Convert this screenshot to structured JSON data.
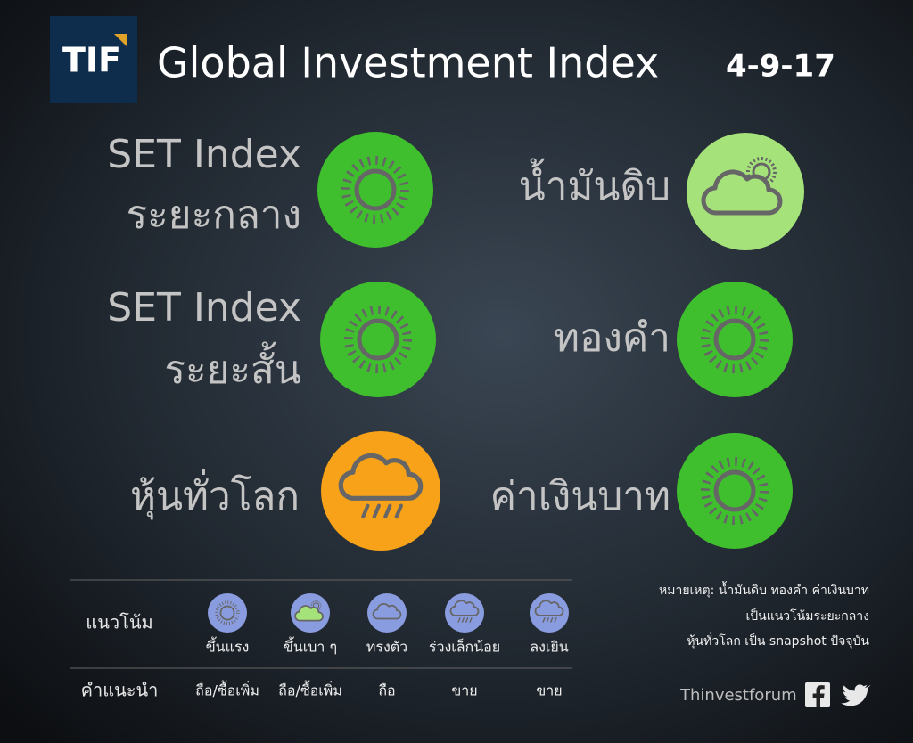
{
  "logo": "TIF",
  "header": {
    "title": "Global Investment Index",
    "date": "4-9-17"
  },
  "items": [
    {
      "label": [
        "SET Index",
        "ระยะกลาง"
      ]
    },
    {
      "label": [
        "SET Index",
        "ระยะสั้น"
      ]
    },
    {
      "label": [
        "หุ้นทั่วโลก"
      ]
    },
    {
      "label": [
        "น้ำมันดิบ"
      ]
    },
    {
      "label": [
        "ทองคำ"
      ]
    },
    {
      "label": [
        "ค่าเงินบาท"
      ]
    }
  ],
  "legend": {
    "rows": [
      "แนวโน้ม",
      "คำแนะนำ"
    ],
    "trends": [
      "ขึ้นแรง",
      "ขึ้นเบา ๆ",
      "ทรงตัว",
      "ร่วงเล็กน้อย",
      "ลงเยิน"
    ],
    "advice": [
      "ถือ/ซื้อเพิ่ม",
      "ถือ/ซื้อเพิ่ม",
      "ถือ",
      "ขาย",
      "ขาย"
    ]
  },
  "note": [
    "หมายเหตุ: น้ำมันดิบ ทองคำ ค่าเงินบาท",
    "เป็นแนวโน้มระยะกลาง",
    "หุ้นทั่วโลก เป็น snapshot ปัจจุบัน"
  ],
  "footer": "Thinvestforum"
}
